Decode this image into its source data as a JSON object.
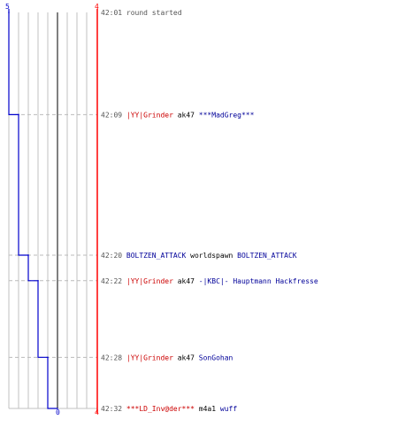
{
  "chart_data": {
    "type": "line",
    "axes": {
      "left_tick_top": "5",
      "bottom_tick": "0",
      "right_tick_top": "4",
      "right_tick_bottom": "4"
    },
    "grid": true,
    "series": [
      {
        "color": "#0000cc",
        "points": [
          {
            "time": "42:01",
            "value": 5
          },
          {
            "time": "42:09",
            "value": 4
          },
          {
            "time": "42:20",
            "value": 3
          },
          {
            "time": "42:22",
            "value": 2
          },
          {
            "time": "42:28",
            "value": 1
          },
          {
            "time": "42:32",
            "value": 0
          }
        ]
      }
    ],
    "events": [
      {
        "time": "42:01",
        "parts": [
          {
            "text": "round started",
            "role": "info"
          }
        ]
      },
      {
        "time": "42:09",
        "parts": [
          {
            "text": "|YY|Grinder",
            "role": "red"
          },
          {
            "text": "ak47",
            "role": "weapon"
          },
          {
            "text": "***MadGreg***",
            "role": "blue"
          }
        ]
      },
      {
        "time": "42:20",
        "parts": [
          {
            "text": "BOLTZEN_ATTACK",
            "role": "blue"
          },
          {
            "text": "worldspawn",
            "role": "weapon"
          },
          {
            "text": "BOLTZEN_ATTACK",
            "role": "blue"
          }
        ]
      },
      {
        "time": "42:22",
        "parts": [
          {
            "text": "|YY|Grinder",
            "role": "red"
          },
          {
            "text": "ak47",
            "role": "weapon"
          },
          {
            "text": "-|KBC|- Hauptmann Hackfresse",
            "role": "blue"
          }
        ]
      },
      {
        "time": "42:28",
        "parts": [
          {
            "text": "|YY|Grinder",
            "role": "red"
          },
          {
            "text": "ak47",
            "role": "weapon"
          },
          {
            "text": "SonGohan",
            "role": "blue"
          }
        ]
      },
      {
        "time": "42:32",
        "parts": [
          {
            "text": "***LD_Inv@der***",
            "role": "red"
          },
          {
            "text": "m4a1",
            "role": "weapon"
          },
          {
            "text": "wuff",
            "role": "blue"
          }
        ]
      }
    ],
    "colors": {
      "blue_team": "#000099",
      "red_team": "#cc0000",
      "weapon": "#000000",
      "time": "#555555",
      "info": "#555555",
      "line": "#0000cc",
      "red_axis": "#ff0000",
      "grid": "#c0c0c0",
      "center": "#808080",
      "dashed": "#bbbbbb"
    }
  }
}
